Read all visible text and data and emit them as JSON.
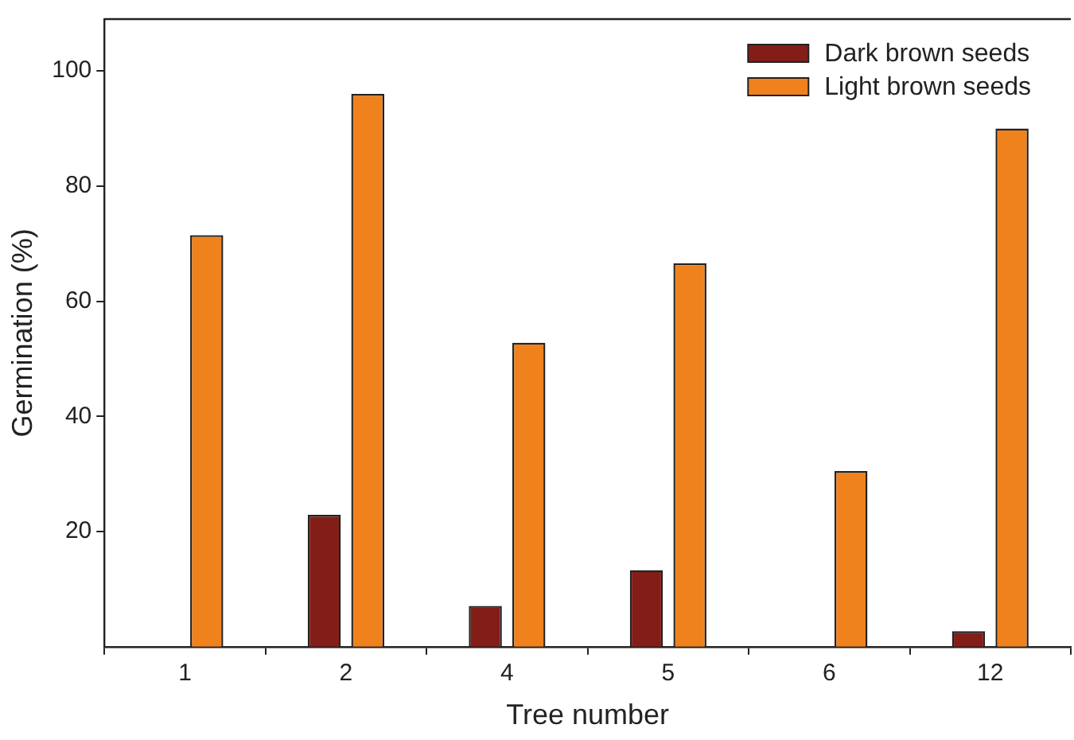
{
  "chart_data": {
    "type": "bar",
    "xlabel": "Tree number",
    "ylabel": "Germination (%)",
    "categories": [
      "1",
      "2",
      "4",
      "5",
      "6",
      "12"
    ],
    "series": [
      {
        "name": "Dark brown seeds",
        "color": "#821e17",
        "values": [
          0,
          22.9,
          7.1,
          13.3,
          0,
          2.7
        ]
      },
      {
        "name": "Light brown seeds",
        "color": "#f0821e",
        "values": [
          71.5,
          96,
          52.8,
          66.6,
          30.5,
          90
        ]
      }
    ],
    "ylim": [
      0,
      109
    ],
    "yticks": [
      20,
      40,
      60,
      80,
      100
    ],
    "grid": false,
    "legend": "top right"
  }
}
